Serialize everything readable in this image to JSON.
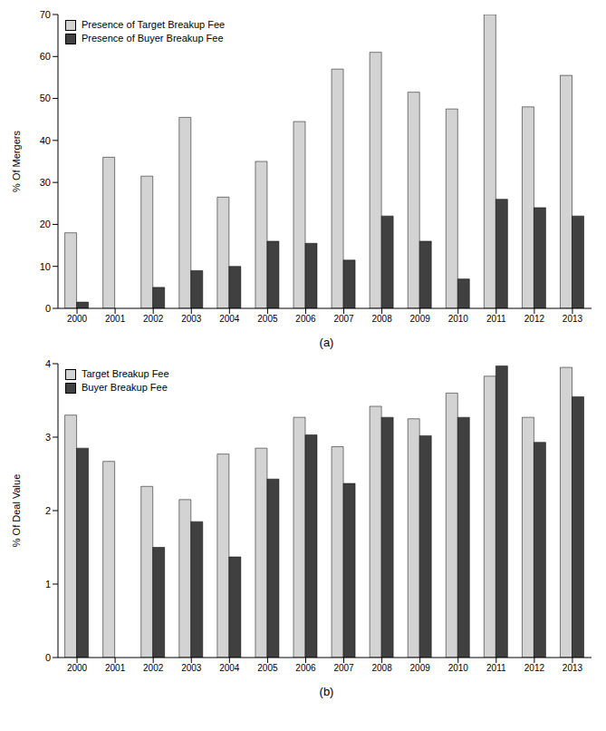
{
  "chart_data": [
    {
      "type": "bar",
      "title": "(a)",
      "y_label": "% Of Mergers",
      "categories": [
        "2000",
        "2001",
        "2002",
        "2003",
        "2004",
        "2005",
        "2006",
        "2007",
        "2008",
        "2009",
        "2010",
        "2011",
        "2012",
        "2013"
      ],
      "series": [
        {
          "name": "Presence of Target Breakup Fee",
          "color": "#d3d3d3",
          "values": [
            18,
            36,
            31.5,
            45.5,
            26.5,
            35,
            44.5,
            57,
            61,
            51.5,
            47.5,
            70,
            48,
            55.5
          ]
        },
        {
          "name": "Presence of Buyer Breakup Fee",
          "color": "#404040",
          "values": [
            1.5,
            0,
            5,
            9,
            10,
            16,
            15.5,
            11.5,
            22,
            16,
            7,
            26,
            24,
            22
          ]
        }
      ],
      "ylim": [
        0,
        70
      ],
      "yticks": [
        0,
        10,
        20,
        30,
        40,
        50,
        60,
        70
      ],
      "grid": false,
      "legend": "upper left"
    },
    {
      "type": "bar",
      "title": "(b)",
      "y_label": "% Of Deal Value",
      "categories": [
        "2000",
        "2001",
        "2002",
        "2003",
        "2004",
        "2005",
        "2006",
        "2007",
        "2008",
        "2009",
        "2010",
        "2011",
        "2012",
        "2013"
      ],
      "series": [
        {
          "name": "Target Breakup Fee",
          "color": "#d3d3d3",
          "values": [
            3.3,
            2.67,
            2.33,
            2.15,
            2.77,
            2.85,
            3.27,
            2.87,
            3.42,
            3.25,
            3.6,
            3.83,
            3.27,
            3.95
          ]
        },
        {
          "name": "Buyer Breakup Fee",
          "color": "#404040",
          "values": [
            2.85,
            null,
            1.5,
            1.85,
            1.37,
            2.43,
            3.03,
            2.37,
            3.27,
            3.02,
            3.27,
            3.97,
            2.93,
            3.55
          ]
        }
      ],
      "ylim": [
        0,
        4
      ],
      "yticks": [
        0,
        1,
        2,
        3,
        4
      ],
      "grid": false,
      "legend": "upper left"
    }
  ]
}
